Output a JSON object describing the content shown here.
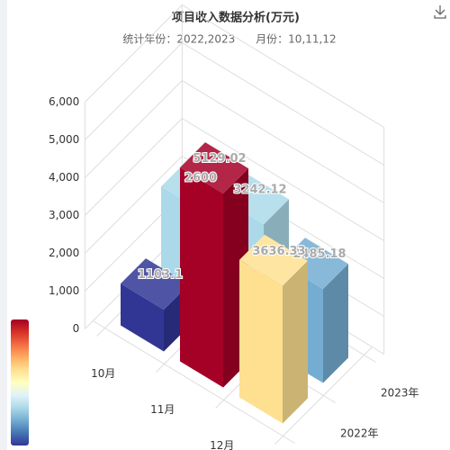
{
  "chart_data": {
    "type": "bar3d",
    "title": "项目收入数据分析(万元)",
    "subtitle": "统计年份：2022,2023      月份：10,11,12",
    "categories": [
      "10月",
      "11月",
      "12月"
    ],
    "series": [
      {
        "name": "2022年",
        "values": [
          1103.1,
          5129.02,
          3636.33
        ],
        "colors": [
          "#313695",
          "#a50026",
          "#fee090"
        ]
      },
      {
        "name": "2023年",
        "values": [
          2600,
          3242.12,
          2485.18
        ],
        "colors": [
          "#abd9e9",
          "#abd9e9",
          "#74add1"
        ]
      }
    ],
    "ylim": [
      0,
      6000
    ],
    "yticks": [
      0,
      {
        "value": 1000,
        "label": "1,000"
      },
      {
        "value": 2000,
        "label": "2,000"
      },
      {
        "value": 3000,
        "label": "3,000"
      },
      {
        "value": 4000,
        "label": "4,000"
      },
      {
        "value": 5000,
        "label": "5,000"
      },
      {
        "value": 6000,
        "label": "6,000"
      }
    ],
    "grid": true,
    "visual_map_colors": [
      "#313695",
      "#4575b4",
      "#74add1",
      "#abd9e9",
      "#e0f3f8",
      "#ffffbf",
      "#fee090",
      "#fdae61",
      "#f46d43",
      "#d73027",
      "#a50026"
    ]
  }
}
